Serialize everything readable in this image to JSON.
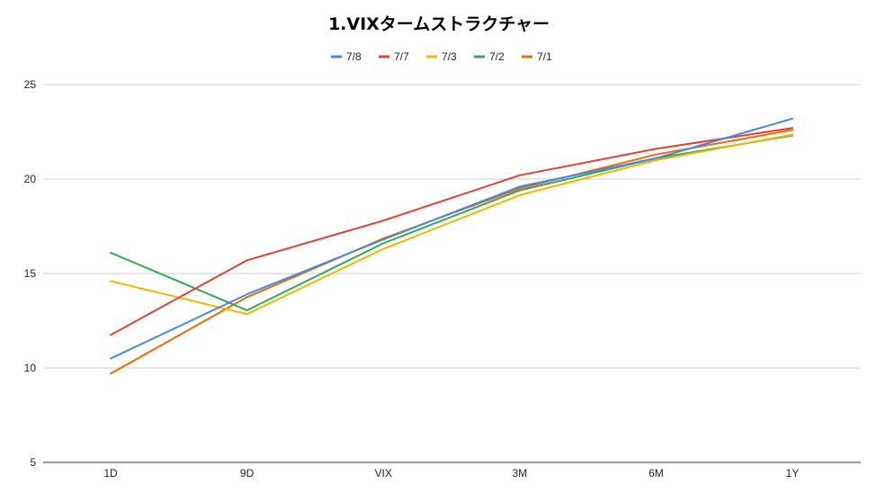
{
  "chart_data": {
    "type": "line",
    "title": "1.VIXタームストラクチャー",
    "xlabel": "",
    "ylabel": "",
    "categories": [
      "1D",
      "9D",
      "VIX",
      "3M",
      "6M",
      "1Y"
    ],
    "ylim": [
      5,
      25
    ],
    "yticks": [
      5,
      10,
      15,
      20,
      25
    ],
    "grid": true,
    "legend_position": "top",
    "series": [
      {
        "name": "7/8",
        "color": "#4a86e8",
        "values": [
          10.5,
          13.9,
          16.8,
          19.6,
          21.1,
          23.2
        ]
      },
      {
        "name": "7/7",
        "color": "#db4437",
        "values": [
          11.75,
          15.7,
          17.8,
          20.2,
          21.6,
          22.7
        ]
      },
      {
        "name": "7/3",
        "color": "#f4b400",
        "values": [
          14.6,
          12.85,
          16.3,
          19.15,
          21.0,
          22.35
        ]
      },
      {
        "name": "7/2",
        "color": "#34a853",
        "values": [
          16.1,
          13.05,
          16.6,
          19.4,
          21.1,
          22.3
        ]
      },
      {
        "name": "7/1",
        "color": "#ef6c00",
        "values": [
          9.7,
          13.75,
          16.85,
          19.5,
          21.3,
          22.6
        ]
      }
    ]
  }
}
